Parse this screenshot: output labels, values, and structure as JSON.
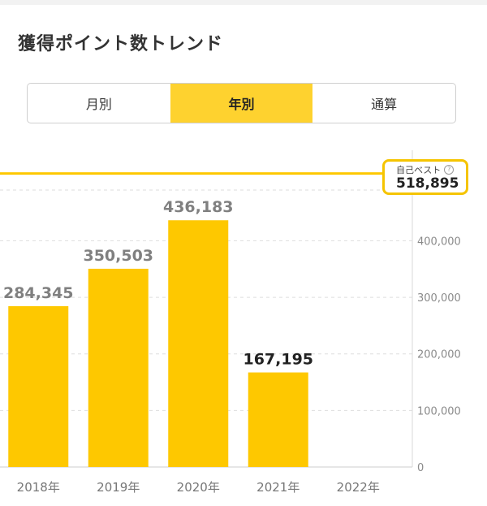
{
  "header": {
    "title": "獲得ポイント数トレンド"
  },
  "tabs": [
    {
      "label": "月別",
      "active": false
    },
    {
      "label": "年別",
      "active": true
    },
    {
      "label": "通算",
      "active": false
    }
  ],
  "best": {
    "label": "自己ベスト",
    "value": "518,895",
    "help_icon": "question-circle-icon"
  },
  "colors": {
    "accent": "#fec800",
    "tab_active": "#fed22f",
    "value_label": "#808080",
    "value_label_latest": "#222222"
  },
  "chart_data": {
    "type": "bar",
    "categories": [
      "2018年",
      "2019年",
      "2020年",
      "2021年",
      "2022年"
    ],
    "values": [
      284345,
      350503,
      436183,
      167195,
      null
    ],
    "value_labels": [
      "284,345",
      "350,503",
      "436,183",
      "167,195",
      ""
    ],
    "highlight_index": 3,
    "best_line": 518895,
    "y_ticks": [
      0,
      100000,
      200000,
      300000,
      400000
    ],
    "y_tick_labels": [
      "0",
      "100,000",
      "200,000",
      "300,000",
      "400,000"
    ],
    "ylim": [
      0,
      560000
    ],
    "grid": true,
    "title": "",
    "xlabel": "",
    "ylabel": ""
  }
}
